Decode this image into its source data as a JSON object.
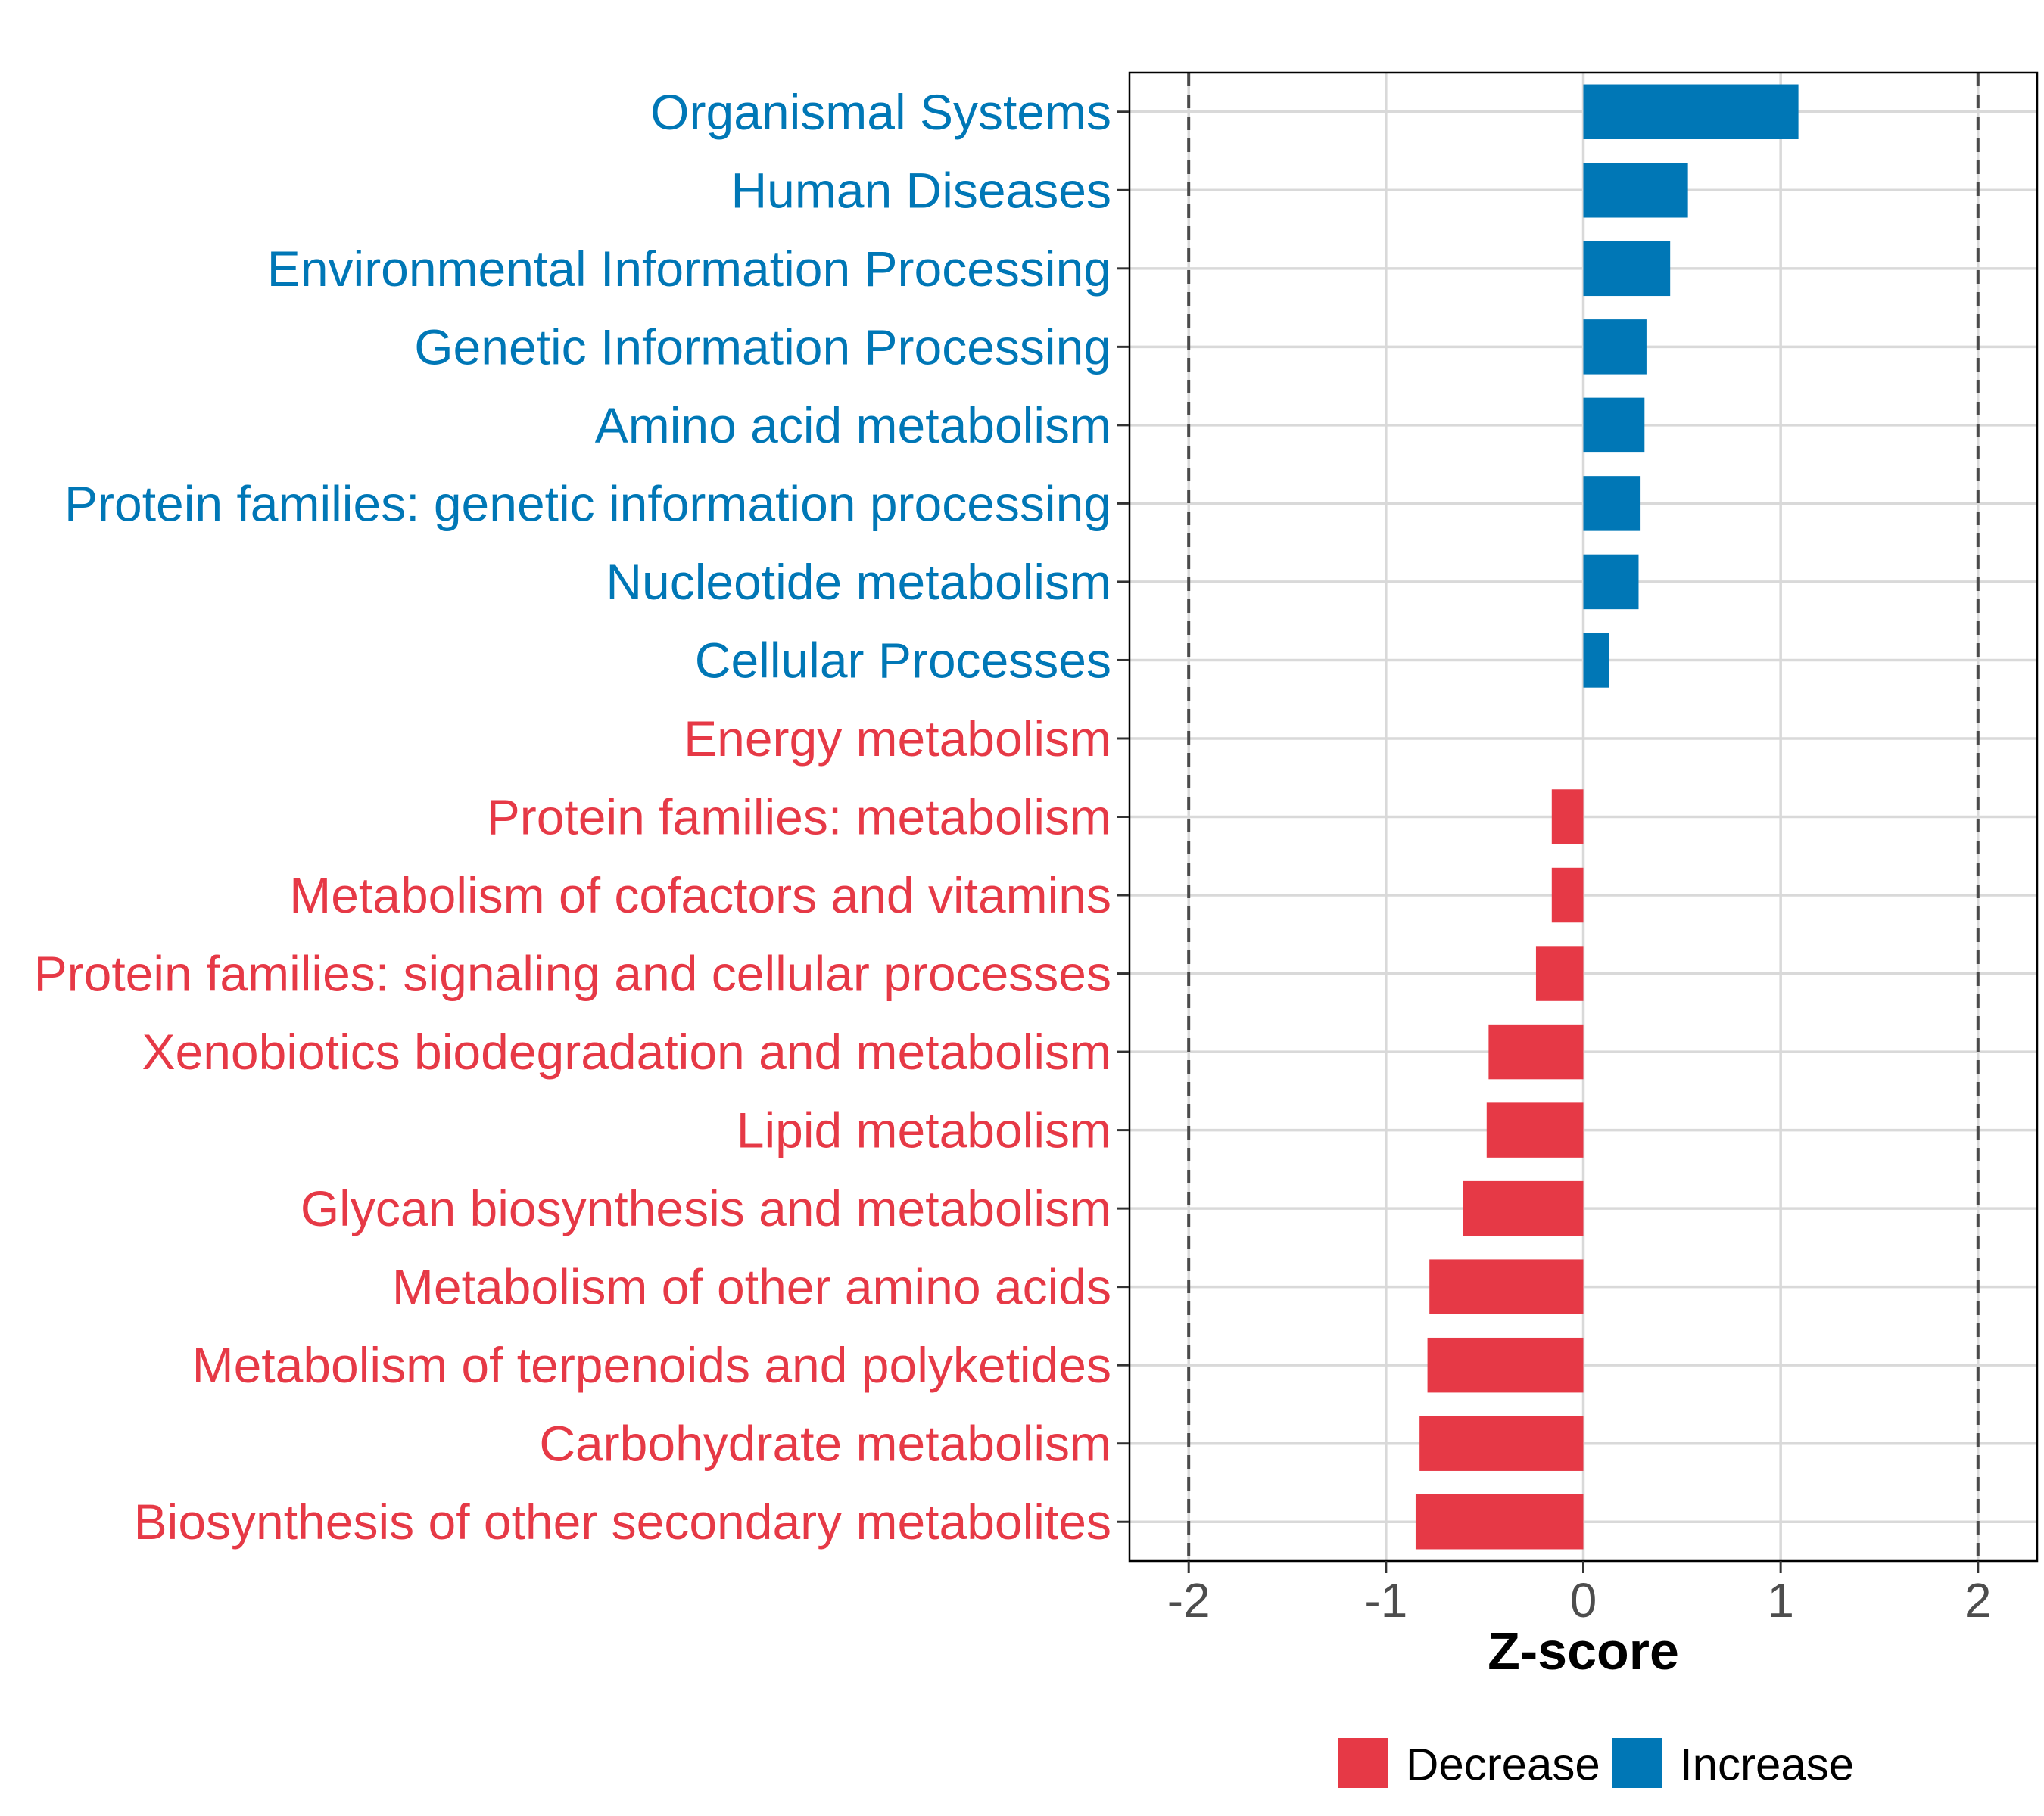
{
  "chart_data": {
    "type": "bar",
    "orientation": "horizontal",
    "title": "",
    "xlabel": "Z-score",
    "ylabel": "",
    "xlim": [
      -2.3,
      2.3
    ],
    "xticks": [
      -2,
      -1,
      0,
      1,
      2
    ],
    "xtick_labels": [
      "-2",
      "-1",
      "0",
      "1",
      "2"
    ],
    "reference_lines": [
      -2,
      2
    ],
    "grid": true,
    "legend_position": "bottom",
    "colors": {
      "Decrease": "#E63946",
      "Increase": "#0077B6"
    },
    "legend": [
      {
        "label": "Decrease",
        "group": "Decrease"
      },
      {
        "label": "Increase",
        "group": "Increase"
      }
    ],
    "categories": [
      "Organismal Systems",
      "Human Diseases",
      "Environmental Information Processing",
      "Genetic Information Processing",
      "Amino acid metabolism",
      "Protein families: genetic information processing",
      "Nucleotide metabolism",
      "Cellular Processes",
      "Energy metabolism",
      "Protein families: metabolism",
      "Metabolism of cofactors and vitamins",
      "Protein families: signaling and cellular processes",
      "Xenobiotics biodegradation and metabolism",
      "Lipid metabolism",
      "Glycan biosynthesis and metabolism",
      "Metabolism of other amino acids",
      "Metabolism of terpenoids and polyketides",
      "Carbohydrate metabolism",
      "Biosynthesis of other secondary metabolites"
    ],
    "values": [
      1.09,
      0.53,
      0.44,
      0.32,
      0.31,
      0.29,
      0.28,
      0.13,
      0.0,
      -0.16,
      -0.16,
      -0.24,
      -0.48,
      -0.49,
      -0.61,
      -0.78,
      -0.79,
      -0.83,
      -0.85
    ],
    "groups": [
      "Increase",
      "Increase",
      "Increase",
      "Increase",
      "Increase",
      "Increase",
      "Increase",
      "Increase",
      "Decrease",
      "Decrease",
      "Decrease",
      "Decrease",
      "Decrease",
      "Decrease",
      "Decrease",
      "Decrease",
      "Decrease",
      "Decrease",
      "Decrease"
    ]
  }
}
